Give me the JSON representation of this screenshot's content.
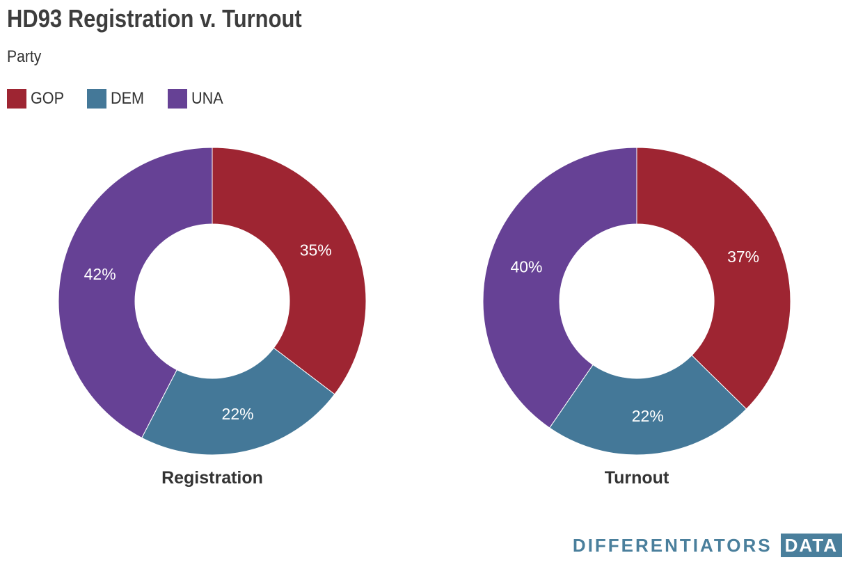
{
  "title": "HD93 Registration v. Turnout",
  "subtitle": "Party",
  "legend": [
    {
      "label": "GOP",
      "color": "#9e2532"
    },
    {
      "label": "DEM",
      "color": "#447898"
    },
    {
      "label": "UNA",
      "color": "#664195"
    }
  ],
  "chart_data": [
    {
      "type": "pie",
      "title": "Registration",
      "donut": true,
      "categories": [
        "GOP",
        "DEM",
        "UNA"
      ],
      "values": [
        35,
        22,
        42
      ],
      "labels": [
        "35%",
        "22%",
        "42%"
      ]
    },
    {
      "type": "pie",
      "title": "Turnout",
      "donut": true,
      "categories": [
        "GOP",
        "DEM",
        "UNA"
      ],
      "values": [
        37,
        22,
        40
      ],
      "labels": [
        "37%",
        "22%",
        "40%"
      ]
    }
  ],
  "branding": {
    "word": "DIFFERENTIATORS",
    "box": "DATA"
  }
}
